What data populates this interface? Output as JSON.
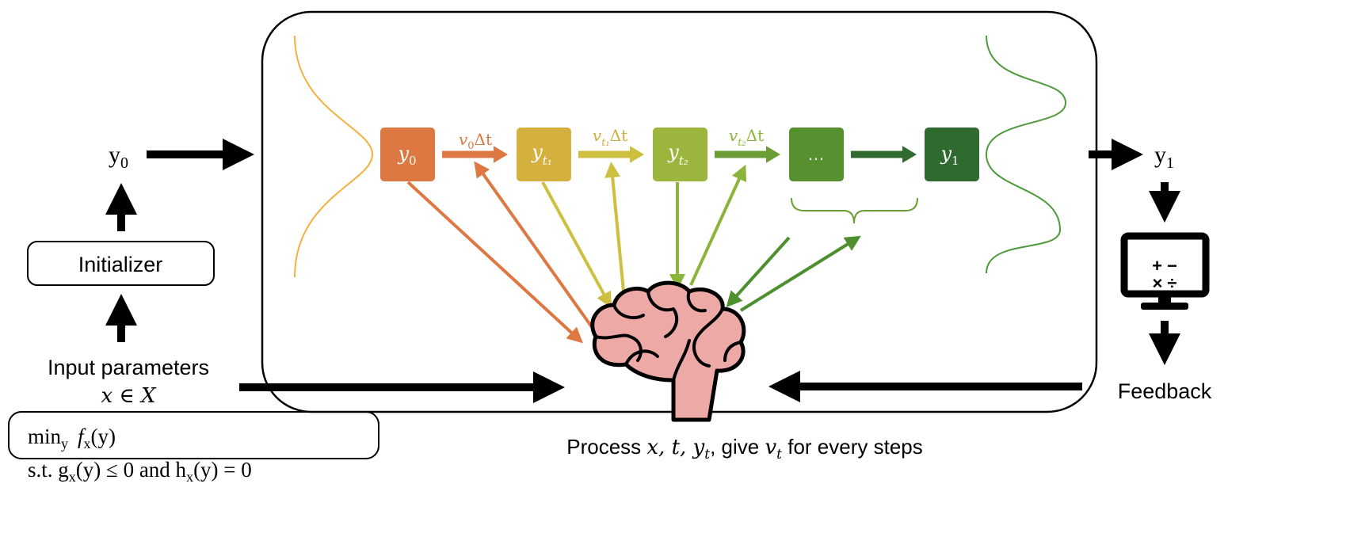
{
  "left": {
    "y0_label": "y",
    "y0_sub": "0",
    "initializer": "Initializer",
    "input_line1": "Input parameters",
    "input_line2": "x ∈ X",
    "problem_line1_min": "min",
    "problem_line1_sub": "y",
    "problem_line1_rest": "f",
    "problem_line1_fsub": "x",
    "problem_line1_arg": "(y)",
    "problem_line2": "s.t.  g",
    "problem_line2_sub1": "x",
    "problem_line2_mid": "(y) ≤ 0 and h",
    "problem_line2_sub2": "x",
    "problem_line2_end": "(y) = 0"
  },
  "flow": {
    "states": [
      {
        "label": "y",
        "sub": "0",
        "color": "#DE7842"
      },
      {
        "label": "y",
        "sub": "t₁",
        "color": "#D4B13E"
      },
      {
        "label": "y",
        "sub": "t₂",
        "color": "#9BB53D"
      },
      {
        "label": "…",
        "sub": "",
        "color": "#56902F"
      },
      {
        "label": "y",
        "sub": "1",
        "color": "#2F6B2E"
      }
    ],
    "steps": [
      {
        "v": "v",
        "sub": "0",
        "rest": "Δt",
        "color": "#DE7842"
      },
      {
        "v": "v",
        "sub": "t₁",
        "rest": "Δt",
        "color": "#CDBF40"
      },
      {
        "v": "v",
        "sub": "t₂",
        "rest": "Δt",
        "color": "#7AAA35"
      },
      {
        "v": "",
        "sub": "",
        "rest": "",
        "color": "#2F6B2E"
      }
    ],
    "start_distribution_color": "#F5B040",
    "end_distribution_color": "#4E9A3A",
    "brain_color": "#EDA9A6"
  },
  "right": {
    "y1_label": "y",
    "y1_sub": "1",
    "calculator_symbols": "+ − × ÷",
    "feedback": "Feedback"
  },
  "caption": {
    "pre": "Process ",
    "vars": "x, t, y",
    "vars_sub": "t",
    "mid": ", give ",
    "v": "v",
    "v_sub": "t",
    "post": " for every steps"
  }
}
